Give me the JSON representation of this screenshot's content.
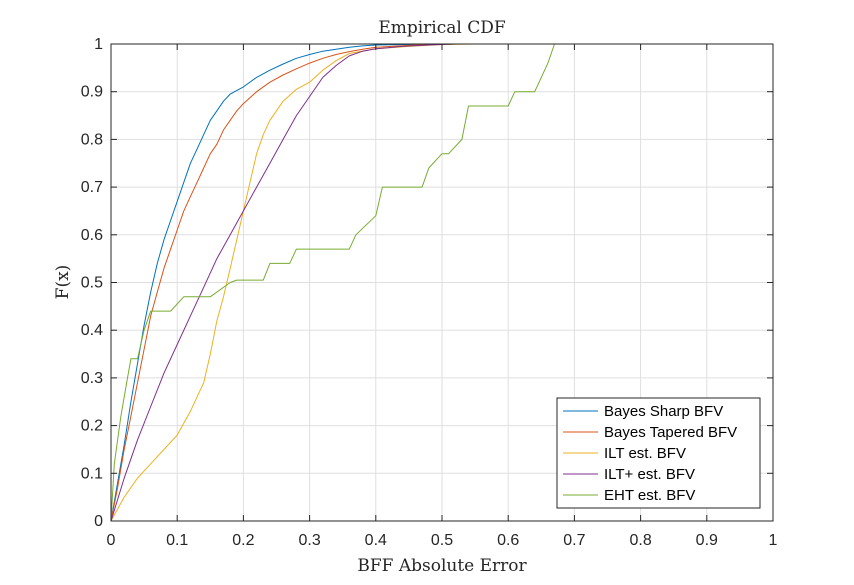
{
  "chart_data": {
    "type": "line",
    "title": "Empirical CDF",
    "xlabel": "BFF Absolute Error",
    "ylabel": "F(x)",
    "xlim": [
      0,
      1
    ],
    "ylim": [
      0,
      1
    ],
    "grid": true,
    "legend_position": "bottom-right",
    "x_ticks": [
      "0",
      "0.1",
      "0.2",
      "0.3",
      "0.4",
      "0.5",
      "0.6",
      "0.7",
      "0.8",
      "0.9",
      "1"
    ],
    "y_ticks": [
      "0",
      "0.1",
      "0.2",
      "0.3",
      "0.4",
      "0.5",
      "0.6",
      "0.7",
      "0.8",
      "0.9",
      "1"
    ],
    "series": [
      {
        "name": "Bayes Sharp BFV",
        "color": "#0072bd",
        "x": [
          0,
          0.01,
          0.02,
          0.03,
          0.04,
          0.05,
          0.06,
          0.07,
          0.08,
          0.09,
          0.1,
          0.11,
          0.12,
          0.13,
          0.14,
          0.15,
          0.16,
          0.17,
          0.18,
          0.2,
          0.22,
          0.24,
          0.26,
          0.28,
          0.3,
          0.32,
          0.34,
          0.36,
          0.38,
          0.4,
          0.45,
          0.52
        ],
        "y": [
          0,
          0.08,
          0.16,
          0.25,
          0.33,
          0.41,
          0.48,
          0.54,
          0.59,
          0.63,
          0.67,
          0.71,
          0.75,
          0.78,
          0.81,
          0.84,
          0.86,
          0.88,
          0.895,
          0.91,
          0.93,
          0.945,
          0.958,
          0.97,
          0.978,
          0.985,
          0.989,
          0.993,
          0.996,
          0.998,
          0.999,
          1.0
        ]
      },
      {
        "name": "Bayes Tapered BFV",
        "color": "#d95319",
        "x": [
          0,
          0.01,
          0.02,
          0.03,
          0.04,
          0.05,
          0.06,
          0.07,
          0.08,
          0.09,
          0.1,
          0.11,
          0.12,
          0.13,
          0.14,
          0.15,
          0.16,
          0.17,
          0.18,
          0.19,
          0.2,
          0.22,
          0.24,
          0.26,
          0.28,
          0.3,
          0.32,
          0.34,
          0.36,
          0.38,
          0.4,
          0.45,
          0.52
        ],
        "y": [
          0,
          0.07,
          0.15,
          0.22,
          0.29,
          0.36,
          0.43,
          0.48,
          0.53,
          0.57,
          0.61,
          0.65,
          0.68,
          0.71,
          0.74,
          0.77,
          0.79,
          0.82,
          0.84,
          0.86,
          0.875,
          0.9,
          0.92,
          0.935,
          0.948,
          0.96,
          0.97,
          0.978,
          0.984,
          0.989,
          0.993,
          0.997,
          1.0
        ]
      },
      {
        "name": "ILT est. BFV",
        "color": "#edb120",
        "x": [
          0,
          0.02,
          0.04,
          0.06,
          0.08,
          0.1,
          0.12,
          0.14,
          0.15,
          0.16,
          0.17,
          0.18,
          0.19,
          0.2,
          0.21,
          0.22,
          0.23,
          0.24,
          0.26,
          0.28,
          0.3,
          0.32,
          0.34,
          0.36,
          0.4,
          0.45,
          0.5,
          0.55,
          0.745
        ],
        "y": [
          0,
          0.05,
          0.09,
          0.12,
          0.15,
          0.18,
          0.23,
          0.29,
          0.35,
          0.42,
          0.47,
          0.53,
          0.59,
          0.65,
          0.71,
          0.77,
          0.81,
          0.84,
          0.88,
          0.905,
          0.92,
          0.945,
          0.965,
          0.98,
          0.99,
          0.995,
          0.999,
          1.0,
          1.0
        ]
      },
      {
        "name": "ILT+ est. BFV",
        "color": "#7e2f8e",
        "x": [
          0,
          0.02,
          0.04,
          0.06,
          0.08,
          0.1,
          0.12,
          0.14,
          0.16,
          0.18,
          0.2,
          0.22,
          0.24,
          0.26,
          0.28,
          0.3,
          0.32,
          0.34,
          0.36,
          0.38,
          0.4,
          0.44,
          0.48,
          0.52
        ],
        "y": [
          0,
          0.09,
          0.17,
          0.24,
          0.31,
          0.37,
          0.43,
          0.49,
          0.55,
          0.6,
          0.65,
          0.7,
          0.75,
          0.8,
          0.85,
          0.89,
          0.93,
          0.955,
          0.975,
          0.985,
          0.99,
          0.995,
          0.998,
          1.0
        ]
      },
      {
        "name": "EHT est. BFV",
        "color": "#77ac30",
        "x": [
          0,
          0.005,
          0.01,
          0.015,
          0.02,
          0.025,
          0.03,
          0.04,
          0.05,
          0.06,
          0.07,
          0.08,
          0.09,
          0.11,
          0.12,
          0.14,
          0.15,
          0.18,
          0.19,
          0.23,
          0.24,
          0.27,
          0.28,
          0.36,
          0.37,
          0.4,
          0.41,
          0.47,
          0.48,
          0.5,
          0.51,
          0.53,
          0.54,
          0.6,
          0.61,
          0.64,
          0.65,
          0.66,
          0.67,
          0.745
        ],
        "y": [
          0,
          0.12,
          0.17,
          0.22,
          0.26,
          0.3,
          0.34,
          0.34,
          0.4,
          0.44,
          0.44,
          0.44,
          0.44,
          0.47,
          0.47,
          0.47,
          0.47,
          0.5,
          0.505,
          0.505,
          0.54,
          0.54,
          0.57,
          0.57,
          0.6,
          0.64,
          0.7,
          0.7,
          0.74,
          0.77,
          0.77,
          0.8,
          0.87,
          0.87,
          0.9,
          0.9,
          0.93,
          0.96,
          1.0,
          1.0
        ]
      }
    ]
  }
}
